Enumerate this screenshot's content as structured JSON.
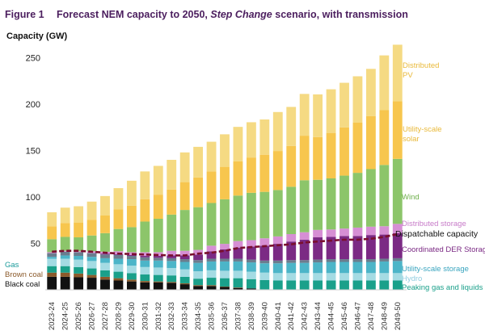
{
  "figure": {
    "number": "Figure 1",
    "title_pre": "Forecast NEM capacity to 2050, ",
    "title_italic": "Step Change",
    "title_post": " scenario, with transmission"
  },
  "chart_data": {
    "type": "bar",
    "stacked": true,
    "title": "Forecast NEM capacity to 2050, Step Change scenario, with transmission",
    "ylabel": "Capacity (GW)",
    "xlabel": "",
    "ylim": [
      0,
      280
    ],
    "yticks": [
      50,
      100,
      150,
      200,
      250
    ],
    "grid": false,
    "categories": [
      "2023-24",
      "2024-25",
      "2025-26",
      "2026-27",
      "2027-28",
      "2028-29",
      "2029-30",
      "2030-31",
      "2031-32",
      "2032-33",
      "2033-34",
      "2034-35",
      "2035-36",
      "2036-37",
      "2037-38",
      "2038-39",
      "2039-40",
      "2040-41",
      "2041-42",
      "2042-43",
      "2043-44",
      "2044-45",
      "2045-46",
      "2046-47",
      "2047-48",
      "2048-49",
      "2049-50"
    ],
    "series": [
      {
        "name": "Black coal",
        "color": "#111111",
        "values": [
          14,
          14,
          13.5,
          13,
          11,
          10,
          9,
          8,
          8,
          7.5,
          6,
          4,
          4,
          3,
          2,
          1.5,
          0.5,
          0,
          0,
          0,
          0,
          0,
          0,
          0,
          0,
          0,
          0
        ]
      },
      {
        "name": "Brown coal",
        "color": "#8b5a2b",
        "values": [
          4.5,
          4.5,
          4,
          3,
          3,
          2.5,
          2,
          1.5,
          1,
          1,
          1,
          1,
          1,
          0.5,
          0.5,
          0,
          0,
          0,
          0,
          0,
          0,
          0,
          0,
          0,
          0,
          0,
          0
        ]
      },
      {
        "name": "Peaking gas and liquids",
        "color": "#1aa08a",
        "values": [
          7,
          7,
          7,
          7,
          7,
          7,
          7,
          7,
          7,
          7,
          7,
          7,
          8,
          9,
          10,
          10,
          10,
          10,
          10,
          10,
          10,
          10,
          10,
          10,
          10,
          10,
          10
        ]
      },
      {
        "name": "Hydro",
        "color": "#a4dbe3",
        "values": [
          8,
          8,
          8,
          8,
          8,
          8,
          8,
          8,
          8,
          8,
          8,
          8,
          8,
          8,
          8,
          8,
          8,
          8,
          8,
          8,
          8,
          8,
          8,
          8,
          8,
          8,
          8
        ]
      },
      {
        "name": "Utility-scale storage",
        "color": "#4cb5c8",
        "values": [
          2,
          3.5,
          4,
          4.5,
          5,
          6,
          7,
          7,
          7.5,
          7.5,
          8,
          9,
          9.5,
          10,
          10,
          10,
          10,
          10.5,
          11,
          11,
          11.5,
          12,
          12,
          12,
          12,
          12.5,
          13
        ]
      },
      {
        "name": "Gas",
        "color": "#6a7d8e",
        "values": [
          4,
          4,
          4,
          4,
          4,
          4,
          3.5,
          3.5,
          3,
          3,
          3,
          3,
          3,
          3,
          3,
          3,
          3,
          3,
          3,
          3,
          3,
          3,
          3,
          3,
          3,
          3,
          3
        ]
      },
      {
        "name": "Coordinated DER Storage",
        "color": "#7b2a84",
        "values": [
          0,
          0,
          0,
          0,
          1,
          1,
          1,
          1.5,
          2,
          3,
          4,
          6,
          8,
          10,
          12,
          14,
          16,
          18,
          20,
          22,
          24,
          24,
          25,
          25,
          26,
          26,
          27
        ]
      },
      {
        "name": "Distributed storage",
        "color": "#d68fd4",
        "values": [
          1,
          1,
          1,
          2,
          2,
          3,
          3,
          4,
          4,
          5,
          5,
          5,
          6,
          6,
          7,
          7,
          8,
          8,
          8,
          8,
          8,
          8,
          8,
          9,
          9,
          9,
          10
        ]
      },
      {
        "name": "Wind",
        "color": "#8cc56a",
        "values": [
          14,
          15,
          15,
          17,
          20,
          24,
          27,
          33,
          36,
          39,
          44,
          46,
          46,
          48,
          49,
          51,
          50,
          50,
          51,
          56,
          54,
          55,
          57,
          59,
          62,
          66,
          70
        ]
      },
      {
        "name": "Utility-scale solar",
        "color": "#f7c64e",
        "values": [
          14,
          15,
          16,
          17,
          19,
          21,
          23,
          24,
          26,
          27,
          30,
          32,
          34,
          35,
          37,
          38,
          40,
          42,
          44,
          48,
          46,
          49,
          52,
          54,
          57,
          59,
          62
        ]
      },
      {
        "name": "Distributed PV",
        "color": "#f5da83",
        "values": [
          15,
          16.5,
          17.5,
          19.5,
          21,
          23,
          27,
          30,
          31,
          32,
          32,
          33,
          32,
          35,
          37,
          38,
          38,
          42,
          42,
          45,
          46,
          47,
          48,
          50,
          51,
          59,
          61
        ]
      }
    ],
    "dispatchable_capacity": {
      "name": "Dispatchable capacity",
      "color": "#7a0f2e",
      "values": [
        41,
        42,
        42,
        41,
        40,
        39,
        38.5,
        38,
        37.5,
        37,
        37,
        39,
        40,
        42,
        45,
        46,
        47,
        48,
        49,
        51,
        52,
        53,
        54,
        54,
        55,
        57,
        60
      ]
    },
    "legend_labels": {
      "distributed_pv": "Distributed PV",
      "utility_scale_solar": "Utility-scale solar",
      "wind": "Wind",
      "distributed_storage": "Distributed storage",
      "dispatchable_capacity": "Dispatchable capacity",
      "coordinated_der_storage": "Coordinated DER Storage",
      "utility_scale_storage": "Utility-scale storage",
      "hydro": "Hydro",
      "peaking_gas_and_liquids": "Peaking gas and liquids",
      "gas": "Gas",
      "brown_coal": "Brown coal",
      "black_coal": "Black coal"
    },
    "legend_colors": {
      "distributed_pv": "#e9b93a",
      "utility_scale_solar": "#e9b93a",
      "wind": "#6fb04c",
      "distributed_storage": "#c77bc8",
      "dispatchable_capacity": "#111111",
      "coordinated_der_storage": "#7b2a84",
      "utility_scale_storage": "#3aa5bf",
      "hydro": "#8fcde0",
      "peaking_gas_and_liquids": "#1aa08a",
      "gas": "#1a9a9a",
      "brown_coal": "#8b5a2b",
      "black_coal": "#111111"
    }
  }
}
